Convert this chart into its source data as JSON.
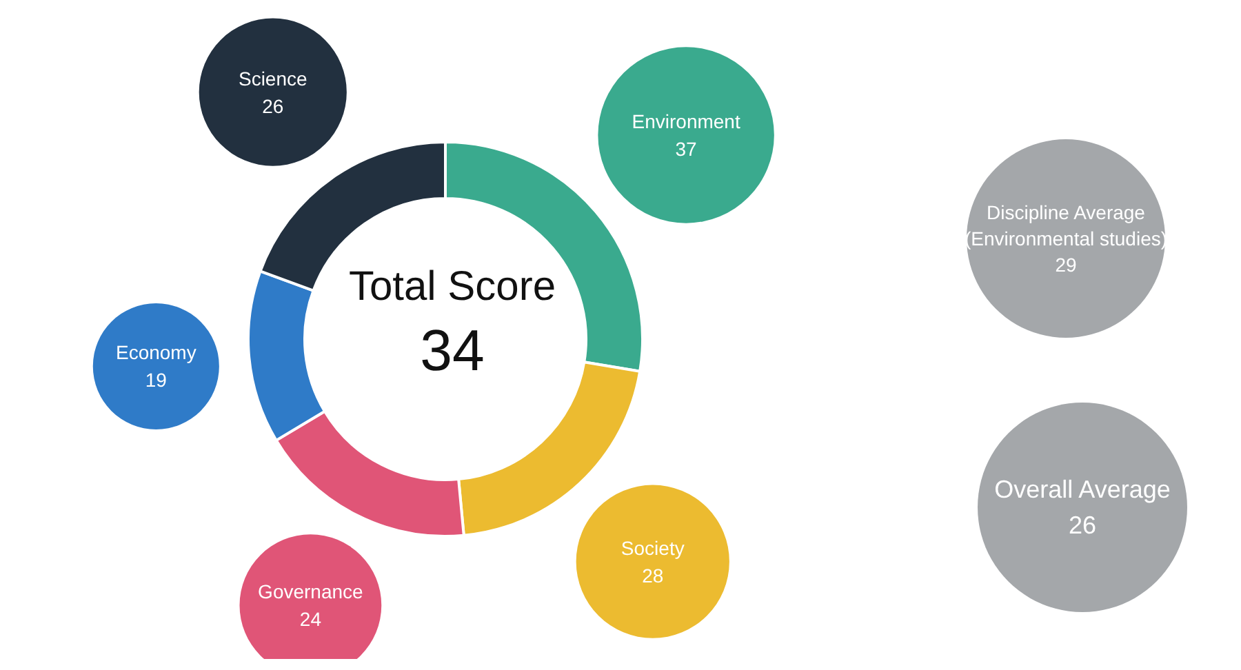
{
  "chart_data": {
    "type": "donut",
    "title": "Total Score",
    "subtitle": "34",
    "categories": [
      "Environment",
      "Society",
      "Governance",
      "Economy",
      "Science"
    ],
    "values": [
      37,
      28,
      24,
      19,
      26
    ],
    "colors": [
      "#3aaa8e",
      "#ecbb30",
      "#e05577",
      "#2f7bc8",
      "#22303f"
    ],
    "data_labels": true,
    "legend": false,
    "annotations": [
      "Discipline Average\n(Environmental studies)\n29",
      "Overall Average\n26"
    ]
  }
}
